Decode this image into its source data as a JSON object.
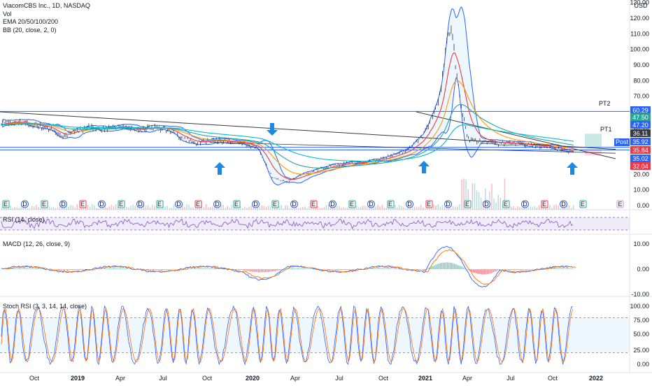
{
  "legend": {
    "title": "ViacomCBS Inc., 1D, NASDAQ",
    "vol": "Vol",
    "ema": "EMA 20/50/100/200",
    "bb": "BB (20, close, 2, 0)"
  },
  "panes": {
    "rsi": "RSI (14, close)",
    "macd": "MACD (12, 26, close, 9)",
    "stoch": "Stoch RSI (3, 3, 14, 14, close)"
  },
  "price_axis": {
    "currency": "USD",
    "ticks": [
      "130.00",
      "120.00",
      "110.00",
      "100.00",
      "90.00",
      "80.00",
      "70.00",
      "60.00",
      "50.00",
      "40.00",
      "30.00",
      "20.00",
      "10.00",
      "0.00"
    ]
  },
  "price_tags": [
    {
      "text": "60.29",
      "color": "#2962ff"
    },
    {
      "text": "47.50",
      "color": "#26a69a"
    },
    {
      "text": "47.20",
      "color": "#2962ff"
    },
    {
      "text": "36.11",
      "color": "#363a45"
    },
    {
      "text": "35.92",
      "color": "#2962ff"
    },
    {
      "text": "35.84",
      "color": "#f23645"
    },
    {
      "text": "35.02",
      "color": "#2962ff"
    },
    {
      "text": "32.04",
      "color": "#f23645"
    }
  ],
  "post_label": "Post",
  "annotations": {
    "pt1": "PT1",
    "pt2": "PT2"
  },
  "macd_axis": [
    "10.00",
    "0.00",
    "-10.00"
  ],
  "stoch_axis": [
    "100.00",
    "75.00",
    "50.00",
    "25.00",
    "0.00"
  ],
  "time_axis": [
    "Oct",
    "2019",
    "Apr",
    "Jul",
    "Oct",
    "2020",
    "Apr",
    "Jul",
    "Oct",
    "2021",
    "Apr",
    "Jul",
    "Oct",
    "2022"
  ],
  "event_markers": [
    "E",
    "D",
    "E",
    "D",
    "E",
    "D",
    "E",
    "D",
    "E",
    "D",
    "E",
    "D",
    "E",
    "D",
    "E",
    "D",
    "E",
    "D",
    "E",
    "D",
    "E",
    "D",
    "E",
    "D",
    "E",
    "D",
    "E",
    "D",
    "E",
    "D",
    "E"
  ],
  "colors": {
    "ema20": "#f23645",
    "ema50": "#ff9800",
    "ema100": "#26a69a",
    "ema200": "#00bcd4",
    "bb": "#2962ff",
    "candle": "#131722",
    "accent": "#2962ff",
    "arrow": "#1e88e5",
    "rsi": "#7e57c2",
    "macd": "#2962ff",
    "signal": "#ff6d00",
    "stoch_k": "#2962ff",
    "stoch_d": "#ff6d00"
  },
  "chart_data": [
    {
      "type": "line",
      "title": "ViacomCBS Inc., 1D, NASDAQ",
      "ylabel": "USD",
      "ylim": [
        0,
        130
      ],
      "x": [
        "2018-09",
        "2018-10",
        "2018-11",
        "2018-12",
        "2019-01",
        "2019-02",
        "2019-03",
        "2019-04",
        "2019-05",
        "2019-06",
        "2019-07",
        "2019-08",
        "2019-09",
        "2019-10",
        "2019-11",
        "2019-12",
        "2020-01",
        "2020-02",
        "2020-03",
        "2020-04",
        "2020-05",
        "2020-06",
        "2020-07",
        "2020-08",
        "2020-09",
        "2020-10",
        "2020-11",
        "2020-12",
        "2021-01",
        "2021-02",
        "2021-03",
        "2021-04",
        "2021-05",
        "2021-06",
        "2021-07",
        "2021-08",
        "2021-09",
        "2021-10",
        "2021-11"
      ],
      "series": [
        {
          "name": "Close",
          "values": [
            53,
            54,
            52,
            50,
            44,
            48,
            50,
            49,
            51,
            48,
            50,
            49,
            43,
            40,
            42,
            41,
            40,
            37,
            18,
            15,
            20,
            23,
            26,
            27,
            28,
            29,
            32,
            36,
            45,
            65,
            90,
            42,
            41,
            40,
            40,
            39,
            38,
            36,
            35
          ]
        }
      ],
      "horizontal_levels": [
        60.29,
        37.5,
        36.11,
        35.92,
        35.84,
        35.02,
        32.04
      ]
    },
    {
      "type": "line",
      "title": "RSI (14, close)",
      "ylim": [
        0,
        100
      ],
      "bands": [
        30,
        70
      ]
    },
    {
      "type": "line",
      "title": "MACD (12, 26, close, 9)",
      "ylim": [
        -12,
        12
      ],
      "peak": 10.5,
      "trough": -9
    }
  ]
}
